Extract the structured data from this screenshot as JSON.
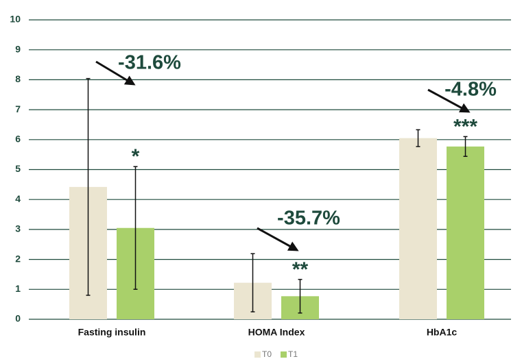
{
  "chart_data": {
    "type": "bar",
    "categories": [
      "Fasting insulin",
      "HOMA Index",
      "HbA1c"
    ],
    "series": [
      {
        "name": "T0",
        "color": "#ebe5d0",
        "values": [
          4.42,
          1.22,
          6.05
        ],
        "errors": [
          3.62,
          0.97,
          0.28
        ]
      },
      {
        "name": "T1",
        "color": "#a9d06a",
        "values": [
          3.05,
          0.77,
          5.77
        ],
        "errors": [
          2.05,
          0.56,
          0.33
        ]
      }
    ],
    "annotations": [
      {
        "change": "-31.6%",
        "significance": "*"
      },
      {
        "change": "-35.7%",
        "significance": "**"
      },
      {
        "change": "-4.8%",
        "significance": "***"
      }
    ],
    "ylim": [
      0,
      10
    ],
    "yticks": [
      0,
      1,
      2,
      3,
      4,
      5,
      6,
      7,
      8,
      9,
      10
    ],
    "grid": true,
    "legend": "bottom"
  }
}
